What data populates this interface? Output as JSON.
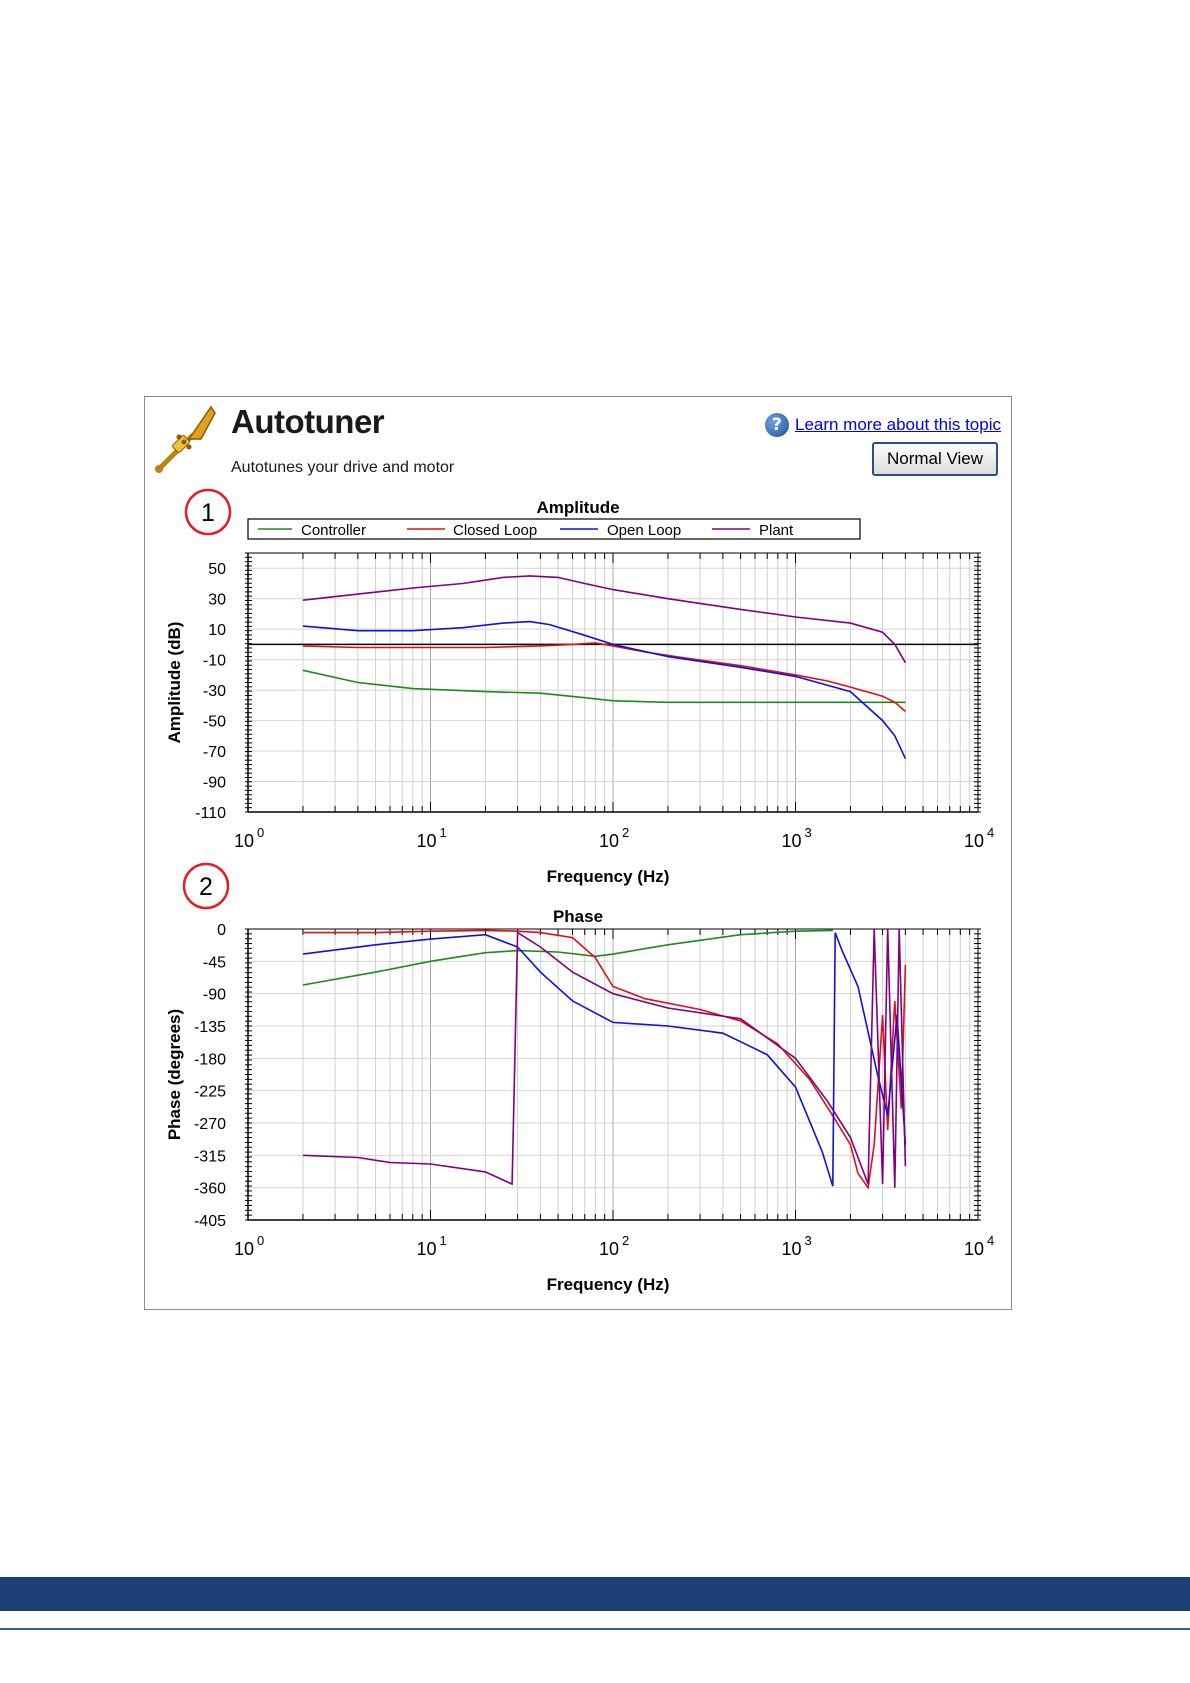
{
  "header": {
    "title": "Autotuner",
    "subtitle": "Autotunes your drive and motor",
    "help_link": "Learn more about this topic",
    "help_icon": "question-icon",
    "normal_view_button": "Normal View",
    "app_icon": "trumpet-icon"
  },
  "callouts": [
    "1",
    "2"
  ],
  "colors": {
    "Controller": "#1e8a1e",
    "Closed Loop": "#e01010",
    "Open Loop": "#1010e0",
    "Plant": "#800080"
  },
  "chart_data": [
    {
      "type": "line",
      "title": "Amplitude",
      "xlabel": "Frequency (Hz)",
      "ylabel": "Amplitude (dB)",
      "xscale": "log",
      "xlim": [
        1,
        10000
      ],
      "ylim": [
        -110,
        60
      ],
      "yticks": [
        50,
        30,
        10,
        -10,
        -30,
        -50,
        -70,
        -90,
        -110
      ],
      "xticks": [
        {
          "base": "10",
          "exp": "0",
          "value": 1
        },
        {
          "base": "10",
          "exp": "1",
          "value": 10
        },
        {
          "base": "10",
          "exp": "2",
          "value": 100
        },
        {
          "base": "10",
          "exp": "3",
          "value": 1000
        },
        {
          "base": "10",
          "exp": "4",
          "value": 10000
        }
      ],
      "reference_line": 0,
      "legend": [
        "Controller",
        "Closed Loop",
        "Open Loop",
        "Plant"
      ],
      "series": [
        {
          "name": "Controller",
          "points": [
            [
              2,
              -17
            ],
            [
              4,
              -25
            ],
            [
              8,
              -29
            ],
            [
              20,
              -31
            ],
            [
              40,
              -32
            ],
            [
              70,
              -35
            ],
            [
              100,
              -37
            ],
            [
              200,
              -38
            ],
            [
              500,
              -38
            ],
            [
              1000,
              -38
            ],
            [
              2000,
              -38
            ],
            [
              4000,
              -38
            ]
          ]
        },
        {
          "name": "Closed Loop",
          "points": [
            [
              2,
              -1
            ],
            [
              4,
              -2
            ],
            [
              10,
              -2
            ],
            [
              20,
              -2
            ],
            [
              40,
              -1
            ],
            [
              60,
              0
            ],
            [
              80,
              1
            ],
            [
              100,
              -1
            ],
            [
              150,
              -5
            ],
            [
              250,
              -9
            ],
            [
              500,
              -14
            ],
            [
              1000,
              -20
            ],
            [
              1500,
              -24
            ],
            [
              2000,
              -28
            ],
            [
              3000,
              -34
            ],
            [
              3500,
              -38
            ],
            [
              4000,
              -44
            ]
          ]
        },
        {
          "name": "Open Loop",
          "points": [
            [
              2,
              12
            ],
            [
              4,
              9
            ],
            [
              8,
              9
            ],
            [
              15,
              11
            ],
            [
              25,
              14
            ],
            [
              35,
              15
            ],
            [
              45,
              13
            ],
            [
              70,
              6
            ],
            [
              100,
              0
            ],
            [
              200,
              -8
            ],
            [
              500,
              -15
            ],
            [
              1000,
              -21
            ],
            [
              2000,
              -31
            ],
            [
              3000,
              -50
            ],
            [
              3500,
              -60
            ],
            [
              4000,
              -75
            ]
          ]
        },
        {
          "name": "Plant",
          "points": [
            [
              2,
              29
            ],
            [
              4,
              33
            ],
            [
              8,
              37
            ],
            [
              15,
              40
            ],
            [
              25,
              44
            ],
            [
              35,
              45
            ],
            [
              50,
              44
            ],
            [
              70,
              40
            ],
            [
              100,
              36
            ],
            [
              200,
              30
            ],
            [
              500,
              23
            ],
            [
              1000,
              18
            ],
            [
              2000,
              14
            ],
            [
              3000,
              8
            ],
            [
              3500,
              0
            ],
            [
              4000,
              -12
            ]
          ]
        }
      ]
    },
    {
      "type": "line",
      "title": "Phase",
      "xlabel": "Frequency (Hz)",
      "ylabel": "Phase (degrees)",
      "xscale": "log",
      "xlim": [
        1,
        10000
      ],
      "ylim": [
        -405,
        0
      ],
      "yticks": [
        0,
        -45,
        -90,
        -135,
        -180,
        -225,
        -270,
        -315,
        -360,
        -405
      ],
      "xticks": [
        {
          "base": "10",
          "exp": "0",
          "value": 1
        },
        {
          "base": "10",
          "exp": "1",
          "value": 10
        },
        {
          "base": "10",
          "exp": "2",
          "value": 100
        },
        {
          "base": "10",
          "exp": "3",
          "value": 1000
        },
        {
          "base": "10",
          "exp": "4",
          "value": 10000
        }
      ],
      "series": [
        {
          "name": "Controller",
          "points": [
            [
              2,
              -78
            ],
            [
              5,
              -60
            ],
            [
              10,
              -45
            ],
            [
              20,
              -33
            ],
            [
              30,
              -30
            ],
            [
              50,
              -32
            ],
            [
              80,
              -38
            ],
            [
              100,
              -35
            ],
            [
              200,
              -22
            ],
            [
              500,
              -8
            ],
            [
              1000,
              -3
            ],
            [
              1600,
              -2
            ]
          ]
        },
        {
          "name": "Closed Loop",
          "points": [
            [
              2,
              -5
            ],
            [
              5,
              -5
            ],
            [
              10,
              -3
            ],
            [
              20,
              -2
            ],
            [
              30,
              -3
            ],
            [
              40,
              -5
            ],
            [
              60,
              -12
            ],
            [
              80,
              -40
            ],
            [
              100,
              -80
            ],
            [
              150,
              -97
            ],
            [
              300,
              -112
            ],
            [
              500,
              -128
            ],
            [
              800,
              -160
            ],
            [
              1200,
              -210
            ],
            [
              1600,
              -260
            ],
            [
              2000,
              -300
            ],
            [
              2200,
              -340
            ],
            [
              2500,
              -360
            ],
            [
              2700,
              -300
            ],
            [
              3000,
              -120
            ],
            [
              3200,
              -280
            ],
            [
              3500,
              -100
            ],
            [
              3800,
              -250
            ],
            [
              4000,
              -50
            ]
          ]
        },
        {
          "name": "Open Loop",
          "points": [
            [
              2,
              -35
            ],
            [
              5,
              -22
            ],
            [
              10,
              -14
            ],
            [
              20,
              -8
            ],
            [
              30,
              -25
            ],
            [
              40,
              -60
            ],
            [
              60,
              -100
            ],
            [
              100,
              -130
            ],
            [
              200,
              -135
            ],
            [
              400,
              -145
            ],
            [
              700,
              -175
            ],
            [
              1000,
              -220
            ],
            [
              1400,
              -310
            ],
            [
              1600,
              -358
            ],
            [
              1650,
              -5
            ],
            [
              1800,
              -30
            ],
            [
              2200,
              -80
            ],
            [
              2800,
              -200
            ],
            [
              3200,
              -260
            ],
            [
              3600,
              -120
            ],
            [
              4000,
              -300
            ]
          ]
        },
        {
          "name": "Plant",
          "points": [
            [
              2,
              -315
            ],
            [
              4,
              -318
            ],
            [
              6,
              -325
            ],
            [
              10,
              -327
            ],
            [
              20,
              -338
            ],
            [
              28,
              -355
            ],
            [
              30,
              -5
            ],
            [
              40,
              -25
            ],
            [
              60,
              -60
            ],
            [
              100,
              -90
            ],
            [
              200,
              -110
            ],
            [
              500,
              -125
            ],
            [
              1000,
              -180
            ],
            [
              1500,
              -240
            ],
            [
              2000,
              -290
            ],
            [
              2500,
              -355
            ],
            [
              2700,
              0
            ],
            [
              3000,
              -355
            ],
            [
              3200,
              0
            ],
            [
              3500,
              -360
            ],
            [
              3700,
              0
            ],
            [
              4000,
              -330
            ]
          ]
        }
      ]
    }
  ]
}
